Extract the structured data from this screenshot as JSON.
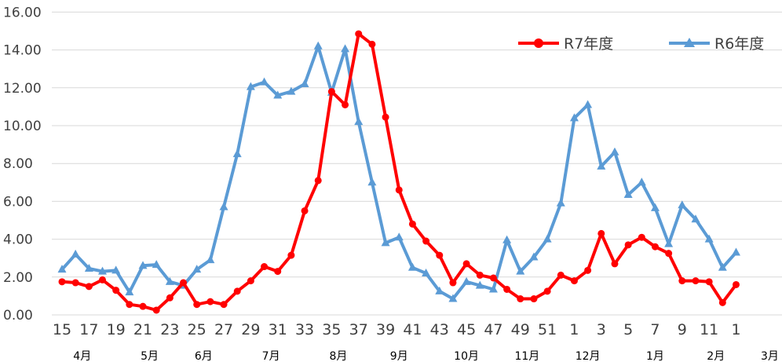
{
  "chart_data": {
    "type": "line",
    "title": "",
    "xlabel": "",
    "ylabel": "",
    "ylim": [
      0,
      16
    ],
    "yticks": [
      "0.00",
      "2.00",
      "4.00",
      "6.00",
      "8.00",
      "10.00",
      "12.00",
      "14.00",
      "16.00"
    ],
    "grid": true,
    "legend_position": "top-right",
    "x_tick_labels": [
      "15",
      "17",
      "19",
      "21",
      "23",
      "25",
      "27",
      "29",
      "31",
      "33",
      "35",
      "37",
      "39",
      "41",
      "43",
      "45",
      "47",
      "49",
      "51",
      "1",
      "3",
      "5",
      "7",
      "9",
      "11",
      "1"
    ],
    "month_labels": [
      "4月",
      "5月",
      "6月",
      "7月",
      "8月",
      "9月",
      "10月",
      "11月",
      "12月",
      "1月",
      "2月",
      "3月"
    ],
    "series": [
      {
        "name": "R7年度",
        "color": "#ff0000",
        "marker": "circle",
        "values": [
          1.75,
          1.7,
          1.5,
          1.85,
          1.3,
          0.55,
          0.45,
          0.25,
          0.9,
          1.7,
          0.55,
          0.7,
          0.55,
          1.25,
          1.8,
          2.55,
          2.3,
          3.15,
          5.5,
          7.1,
          11.8,
          11.1,
          14.85,
          14.3,
          10.45,
          6.6,
          4.8,
          3.9,
          3.15,
          1.7,
          2.7,
          2.1,
          1.95,
          1.35,
          0.85,
          0.85,
          1.25,
          2.1,
          1.8,
          2.35,
          4.3,
          2.7,
          3.7,
          4.1,
          3.6,
          3.25,
          1.8,
          1.8,
          1.75,
          0.65,
          1.6
        ]
      },
      {
        "name": "R6年度",
        "color": "#5b9bd5",
        "marker": "triangle",
        "values": [
          2.4,
          3.2,
          2.45,
          2.3,
          2.35,
          1.2,
          2.6,
          2.65,
          1.75,
          1.55,
          2.4,
          2.9,
          5.7,
          8.5,
          12.05,
          12.3,
          11.6,
          11.8,
          12.2,
          14.2,
          11.75,
          14.05,
          10.2,
          7.0,
          3.8,
          4.1,
          2.5,
          2.2,
          1.25,
          0.85,
          1.75,
          1.55,
          1.35,
          3.95,
          2.3,
          3.05,
          4.0,
          5.9,
          10.4,
          11.1,
          7.85,
          8.6,
          6.35,
          7.0,
          5.65,
          3.75,
          5.8,
          5.05,
          4.0,
          2.5,
          3.3
        ]
      }
    ]
  }
}
